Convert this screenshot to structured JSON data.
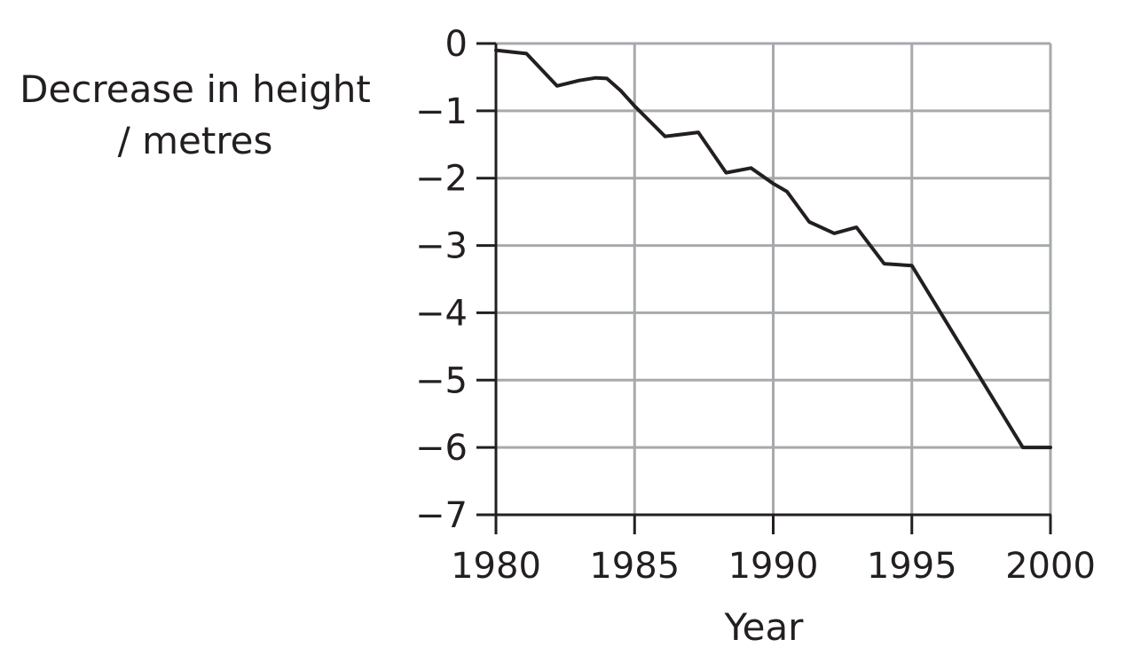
{
  "chart_data": {
    "type": "line",
    "title": "",
    "xlabel": "Year",
    "ylabel_lines": [
      "Decrease in height",
      "/ metres"
    ],
    "xlim": [
      1980,
      2000
    ],
    "ylim": [
      -7,
      0
    ],
    "x_ticks": [
      1980,
      1985,
      1990,
      1995,
      2000
    ],
    "y_ticks": [
      0,
      -1,
      -2,
      -3,
      -4,
      -5,
      -6,
      -7
    ],
    "x_tick_labels": [
      "1980",
      "1985",
      "1990",
      "1995",
      "2000"
    ],
    "y_tick_labels": [
      "0",
      "−1",
      "−2",
      "−3",
      "−4",
      "−5",
      "−6",
      "−7"
    ],
    "grid": true,
    "series": [
      {
        "x": [
          1980.0,
          1981.1,
          1982.2,
          1983.0,
          1983.6,
          1984.0,
          1984.5,
          1985.0,
          1986.1,
          1987.3,
          1988.3,
          1989.2,
          1990.0,
          1990.5,
          1991.3,
          1992.2,
          1993.0,
          1994.0,
          1995.0,
          1999.0,
          2000.0
        ],
        "y": [
          -0.1,
          -0.15,
          -0.63,
          -0.55,
          -0.51,
          -0.52,
          -0.7,
          -0.93,
          -1.38,
          -1.32,
          -1.92,
          -1.85,
          -2.08,
          -2.2,
          -2.65,
          -2.82,
          -2.73,
          -3.27,
          -3.3,
          -6.0,
          -6.0
        ]
      }
    ],
    "colors": {
      "line": "#231f20",
      "grid": "#a7a9ac",
      "axis": "#231f20",
      "text": "#231f20"
    }
  }
}
